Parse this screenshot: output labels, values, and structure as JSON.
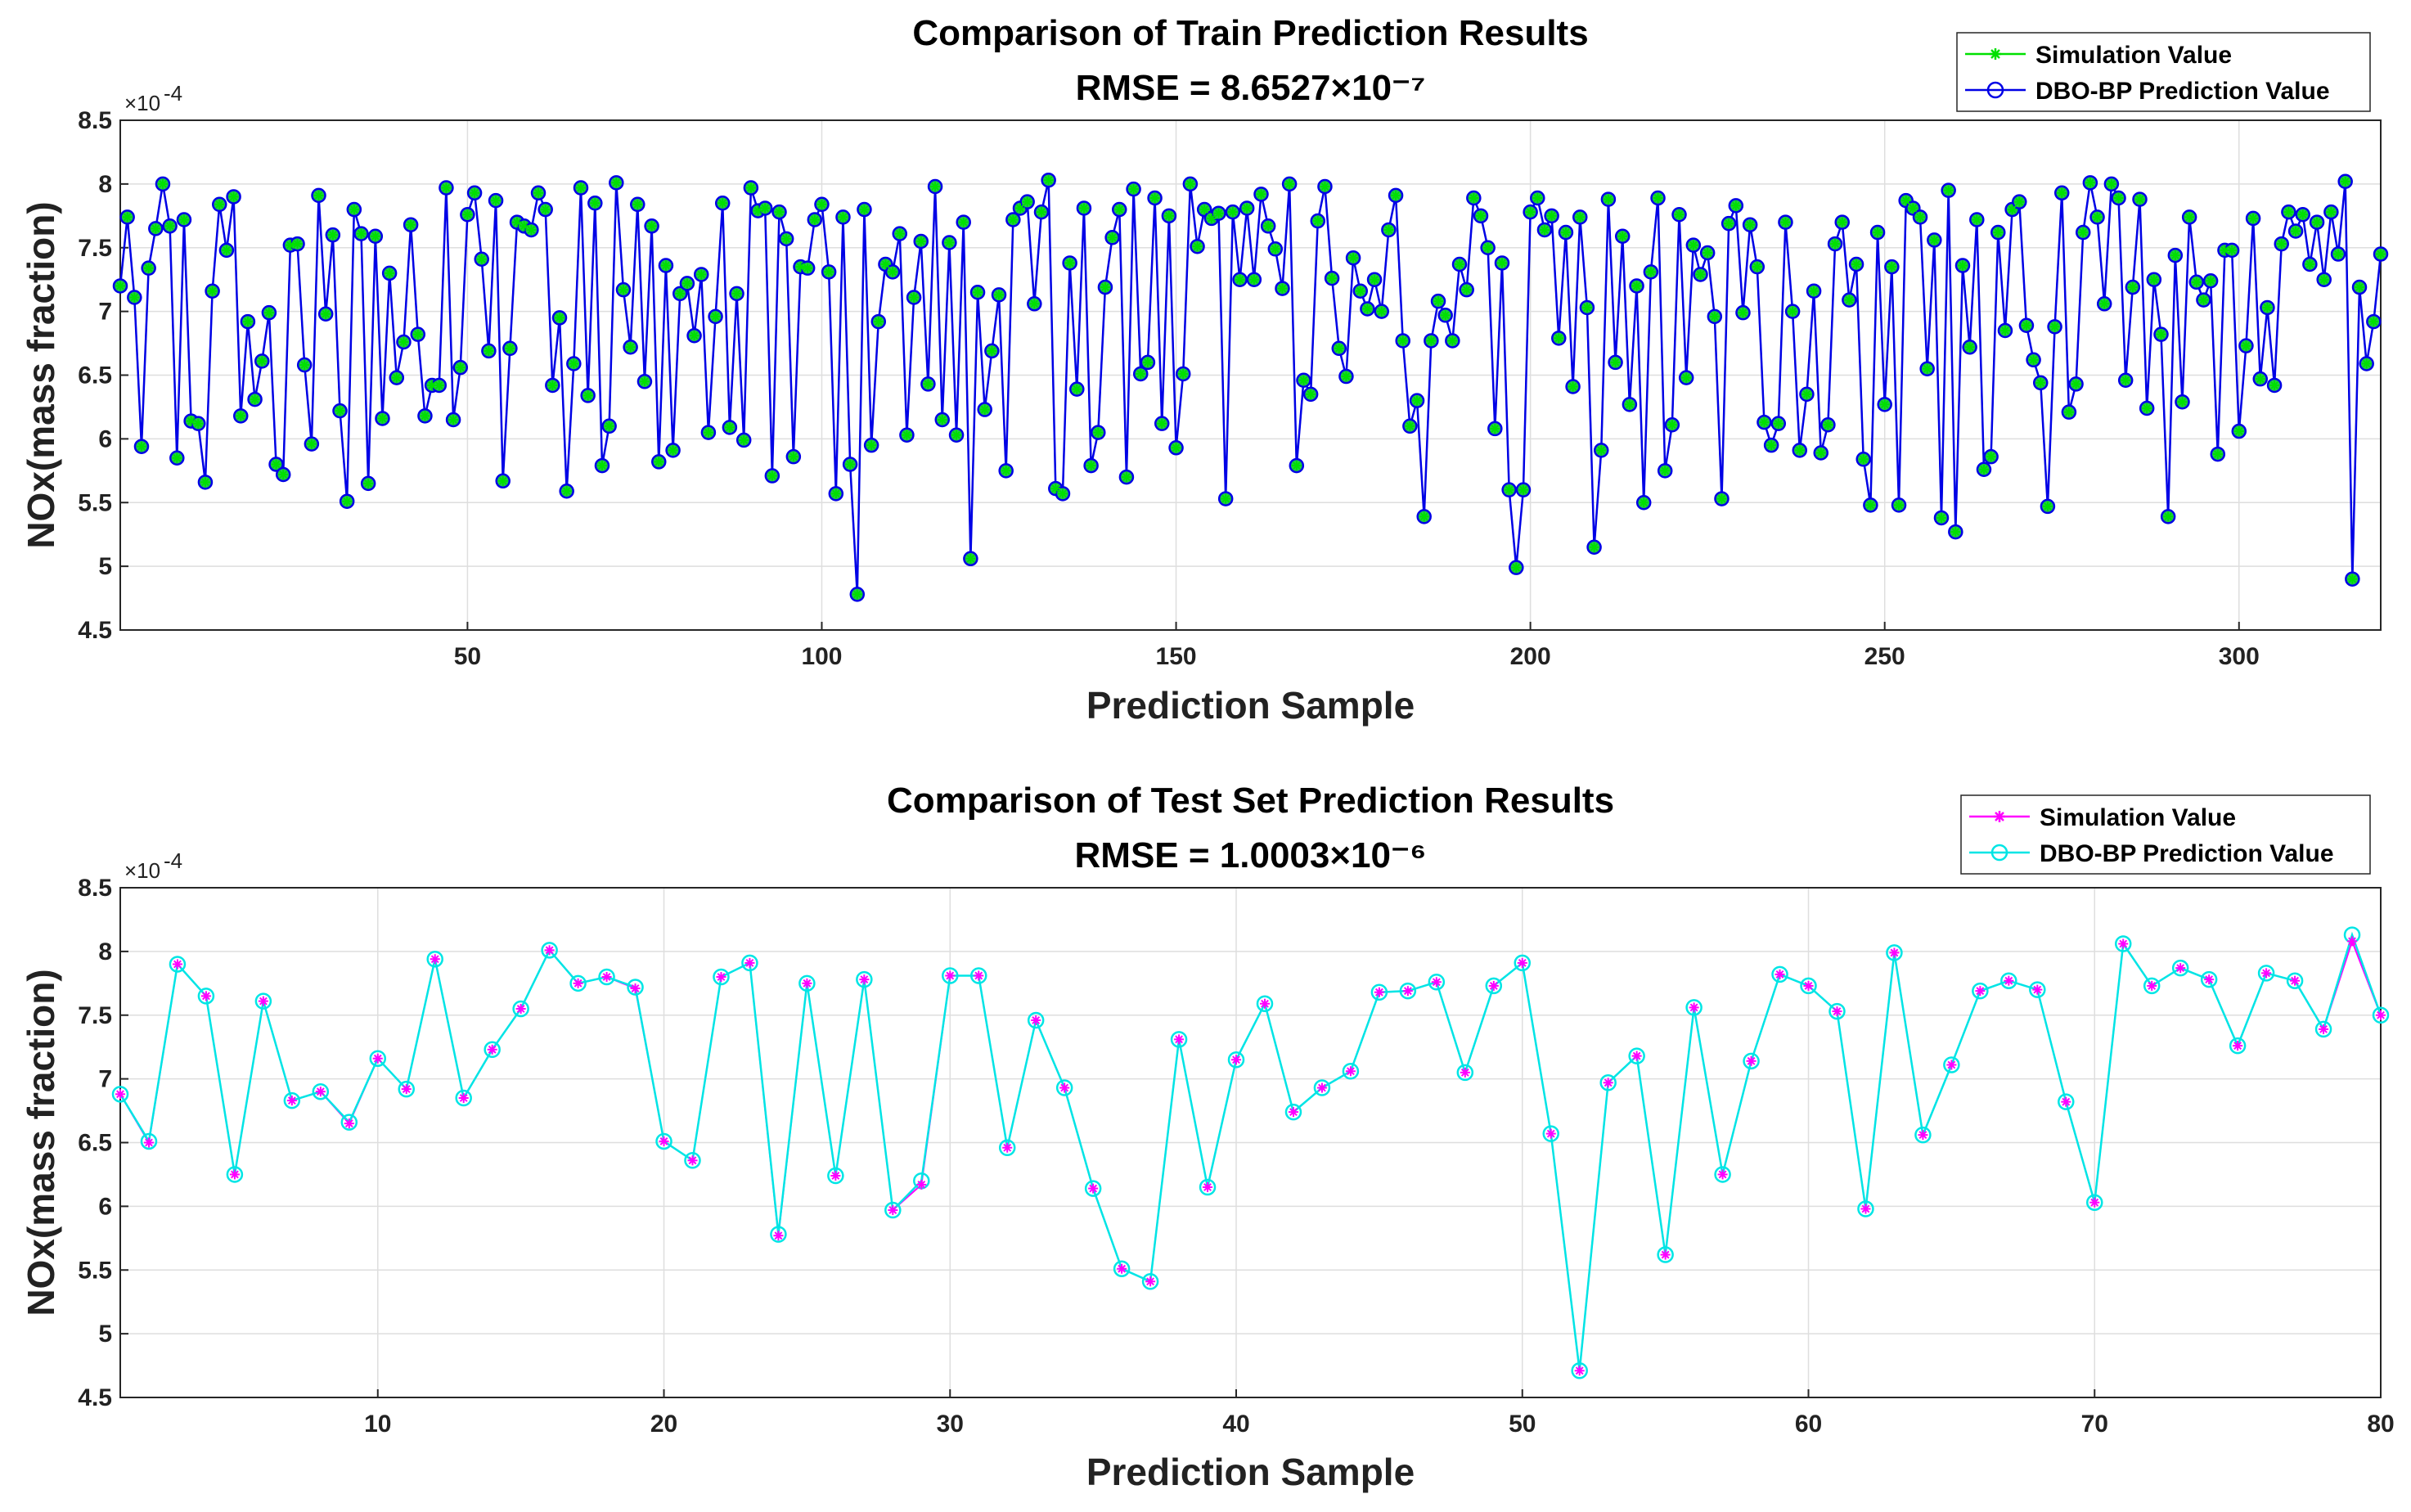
{
  "chart_data": [
    {
      "type": "line",
      "title": "Comparison of Train Prediction Results",
      "subtitle": "RMSE = 8.6527×10⁻⁷",
      "xlabel": "Prediction Sample",
      "ylabel": "NOx(mass fraction)",
      "y_exponent_label": "×10",
      "y_exponent_power": "-4",
      "xlim": [
        1,
        320
      ],
      "ylim": [
        4.5,
        8.5
      ],
      "xticks": [
        50,
        100,
        150,
        200,
        250,
        300
      ],
      "yticks": [
        4.5,
        5,
        5.5,
        6,
        6.5,
        7,
        7.5,
        8,
        8.5
      ],
      "grid": true,
      "legend_position": "top-right",
      "colors": {
        "series1": "#00e000",
        "series2": "#0000e6"
      },
      "series": [
        {
          "name": "Simulation Value",
          "marker": "asterisk",
          "values": []
        },
        {
          "name": "DBO-BP Prediction Value",
          "marker": "circle",
          "values": [
            7.2,
            7.74,
            7.11,
            5.94,
            7.34,
            7.65,
            8.0,
            7.67,
            5.85,
            7.72,
            6.14,
            6.12,
            5.66,
            7.16,
            7.84,
            7.48,
            7.9,
            6.18,
            6.92,
            6.31,
            6.61,
            6.99,
            5.8,
            5.72,
            7.52,
            7.53,
            6.58,
            5.96,
            7.91,
            6.98,
            7.6,
            6.22,
            5.51,
            7.8,
            7.61,
            5.65,
            7.59,
            6.16,
            7.3,
            6.48,
            6.76,
            7.68,
            6.82,
            6.18,
            6.42,
            6.42,
            7.97,
            6.15,
            6.56,
            7.76,
            7.93,
            7.41,
            6.69,
            7.87,
            5.67,
            6.71,
            7.7,
            7.67,
            7.64,
            7.93,
            7.8,
            6.42,
            6.95,
            5.59,
            6.59,
            7.97,
            6.34,
            7.85,
            5.79,
            6.1,
            8.01,
            7.17,
            6.72,
            7.84,
            6.45,
            7.67,
            5.82,
            7.36,
            5.91,
            7.14,
            7.22,
            6.81,
            7.29,
            6.05,
            6.96,
            7.85,
            6.09,
            7.14,
            5.99,
            7.97,
            7.79,
            7.81,
            5.71,
            7.78,
            7.57,
            5.86,
            7.35,
            7.34,
            7.72,
            7.84,
            7.31,
            5.57,
            7.74,
            5.8,
            4.78,
            7.8,
            5.95,
            6.92,
            7.37,
            7.31,
            7.61,
            6.03,
            7.11,
            7.55,
            6.43,
            7.98,
            6.15,
            7.54,
            6.03,
            7.7,
            5.06,
            7.15,
            6.23,
            6.69,
            7.13,
            5.75,
            7.72,
            7.81,
            7.86,
            7.06,
            7.78,
            8.03,
            5.61,
            5.57,
            7.38,
            6.39,
            7.81,
            5.79,
            6.05,
            7.19,
            7.58,
            7.8,
            5.7,
            7.96,
            6.51,
            6.6,
            7.89,
            6.12,
            7.75,
            5.93,
            6.51,
            8.0,
            7.51,
            7.8,
            7.73,
            7.77,
            5.53,
            7.78,
            7.25,
            7.81,
            7.25,
            7.92,
            7.67,
            7.49,
            7.18,
            8.0,
            5.79,
            6.46,
            6.35,
            7.71,
            7.98,
            7.26,
            6.71,
            6.49,
            7.42,
            7.16,
            7.02,
            7.25,
            7.0,
            7.64,
            7.91,
            6.77,
            6.1,
            6.3,
            5.39,
            6.77,
            7.08,
            6.97,
            6.77,
            7.37,
            7.17,
            7.89,
            7.75,
            7.5,
            6.08,
            7.38,
            5.6,
            4.99,
            5.6,
            7.78,
            7.89,
            7.64,
            7.75,
            6.79,
            7.62,
            6.41,
            7.74,
            7.03,
            5.15,
            5.91,
            7.88,
            6.6,
            7.59,
            6.27,
            7.2,
            5.5,
            7.31,
            7.89,
            5.75,
            6.11,
            7.76,
            6.48,
            7.52,
            7.29,
            7.46,
            6.96,
            5.53,
            7.69,
            7.83,
            6.99,
            7.68,
            7.35,
            6.13,
            5.95,
            6.12,
            7.7,
            7.0,
            5.91,
            6.35,
            7.16,
            5.89,
            6.11,
            7.53,
            7.7,
            7.09,
            7.37,
            5.84,
            5.48,
            7.62,
            6.27,
            7.35,
            5.48,
            7.87,
            7.81,
            7.74,
            6.55,
            7.56,
            5.38,
            7.95,
            5.27,
            7.36,
            6.72,
            7.72,
            5.76,
            5.86,
            7.62,
            6.85,
            7.8,
            7.86,
            6.89,
            6.62,
            6.44,
            5.47,
            6.88,
            7.93,
            6.21,
            6.43,
            7.62,
            8.01,
            7.74,
            7.06,
            8.0,
            7.89,
            6.46,
            7.19,
            7.88,
            6.24,
            7.25,
            6.82,
            5.39,
            7.44,
            6.29,
            7.74,
            7.23,
            7.09,
            7.24,
            5.88,
            7.48,
            7.48,
            6.06,
            6.73,
            7.73,
            6.47,
            7.03,
            6.42,
            7.53,
            7.78,
            7.63,
            7.76,
            7.37,
            7.7,
            7.25,
            7.78,
            7.45,
            8.02,
            4.9,
            7.19,
            6.59,
            6.92,
            7.45
          ]
        }
      ]
    },
    {
      "type": "line",
      "title": "Comparison of Test Set Prediction Results",
      "subtitle": "RMSE = 1.0003×10⁻⁶",
      "xlabel": "Prediction Sample",
      "ylabel": "NOx(mass fraction)",
      "y_exponent_label": "×10",
      "y_exponent_power": "-4",
      "xlim": [
        1,
        80
      ],
      "ylim": [
        4.5,
        8.5
      ],
      "xticks": [
        10,
        20,
        30,
        40,
        50,
        60,
        70,
        80
      ],
      "yticks": [
        4.5,
        5,
        5.5,
        6,
        6.5,
        7,
        7.5,
        8,
        8.5
      ],
      "grid": true,
      "legend_position": "top-right",
      "colors": {
        "series1": "#ff00ff",
        "series2": "#00e5e5"
      },
      "series": [
        {
          "name": "Simulation Value",
          "marker": "asterisk",
          "values": [
            6.88,
            6.5,
            7.9,
            7.65,
            6.25,
            7.61,
            6.83,
            6.9,
            6.65,
            7.16,
            6.92,
            7.94,
            6.85,
            7.23,
            7.55,
            8.01,
            7.75,
            7.8,
            7.71,
            6.51,
            6.36,
            7.8,
            7.91,
            5.77,
            7.75,
            6.24,
            7.78,
            5.97,
            6.17,
            7.81,
            7.81,
            6.46,
            7.46,
            6.93,
            6.14,
            5.51,
            5.41,
            7.31,
            6.15,
            7.15,
            7.59,
            6.74,
            6.93,
            7.06,
            7.68,
            7.69,
            7.76,
            7.05,
            7.73,
            7.91,
            6.57,
            4.71,
            6.97,
            7.18,
            5.62,
            7.56,
            6.25,
            7.14,
            7.82,
            7.73,
            7.53,
            5.98,
            7.99,
            6.56,
            7.11,
            7.69,
            7.77,
            7.7,
            6.82,
            6.03,
            8.06,
            7.73,
            7.87,
            7.78,
            7.26,
            7.83,
            7.77,
            7.39,
            8.08,
            7.5
          ]
        },
        {
          "name": "DBO-BP Prediction Value",
          "marker": "circle",
          "values": [
            6.88,
            6.51,
            7.9,
            7.65,
            6.25,
            7.61,
            6.83,
            6.9,
            6.66,
            7.16,
            6.92,
            7.94,
            6.85,
            7.23,
            7.55,
            8.01,
            7.75,
            7.8,
            7.72,
            6.51,
            6.36,
            7.8,
            7.91,
            5.78,
            7.75,
            6.24,
            7.78,
            5.97,
            6.2,
            7.81,
            7.81,
            6.46,
            7.46,
            6.93,
            6.14,
            5.51,
            5.41,
            7.31,
            6.15,
            7.15,
            7.59,
            6.74,
            6.93,
            7.06,
            7.68,
            7.69,
            7.76,
            7.05,
            7.73,
            7.91,
            6.57,
            4.71,
            6.97,
            7.18,
            5.62,
            7.56,
            6.25,
            7.14,
            7.82,
            7.73,
            7.53,
            5.98,
            7.99,
            6.56,
            7.11,
            7.69,
            7.77,
            7.7,
            6.82,
            6.03,
            8.06,
            7.73,
            7.87,
            7.78,
            7.26,
            7.83,
            7.77,
            7.39,
            8.13,
            7.5
          ]
        }
      ]
    }
  ]
}
